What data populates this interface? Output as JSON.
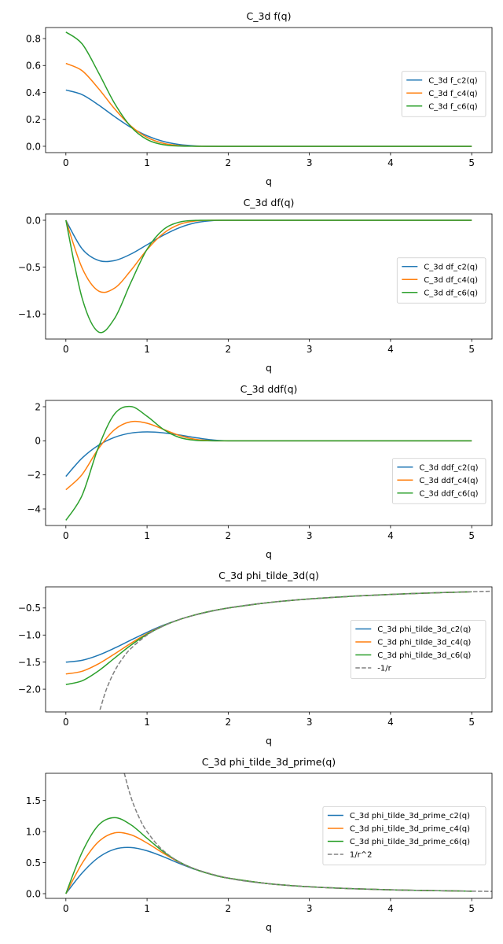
{
  "chart_data": [
    {
      "type": "line",
      "title": "C_3d f(q)",
      "xlabel": "q",
      "xlim": [
        -0.25,
        5.25
      ],
      "ylim": [
        -0.047,
        0.882
      ],
      "x_ticks": [
        0,
        1,
        2,
        3,
        4,
        5
      ],
      "x_tick_labels": [
        "0",
        "1",
        "2",
        "3",
        "4",
        "5"
      ],
      "y_ticks": [
        0.0,
        0.2,
        0.4,
        0.6,
        0.8
      ],
      "y_tick_labels": [
        "0.0",
        "0.2",
        "0.4",
        "0.6",
        "0.8"
      ],
      "grid": false,
      "legend_placement": "center-right",
      "series": [
        {
          "name": "C_3d f_c2(q)",
          "color": "#1f77b4",
          "dashed": false,
          "x": [
            0,
            0.2,
            0.4,
            0.6,
            0.8,
            1.0,
            1.2,
            1.4,
            1.6,
            1.8,
            2.0,
            2.5,
            3,
            3.5,
            4,
            4.5,
            5
          ],
          "y": [
            0.4178,
            0.3837,
            0.308,
            0.2207,
            0.1408,
            0.0783,
            0.0364,
            0.0129,
            0.0028,
            0.0002,
            0,
            0,
            0,
            0,
            0,
            0,
            0
          ]
        },
        {
          "name": "C_3d f_c4(q)",
          "color": "#ff7f0e",
          "dashed": false,
          "x": [
            0,
            0.2,
            0.4,
            0.6,
            0.8,
            1.0,
            1.2,
            1.4,
            1.6,
            1.8,
            2.0,
            2.5,
            3,
            3.5,
            4,
            4.5,
            5
          ],
          "y": [
            0.6155,
            0.5615,
            0.4303,
            0.2788,
            0.1512,
            0.0665,
            0.0222,
            0.0049,
            0.0005,
            0,
            0,
            0,
            0,
            0,
            0,
            0,
            0
          ]
        },
        {
          "name": "C_3d f_c6(q)",
          "color": "#2ca02c",
          "dashed": false,
          "x": [
            0,
            0.2,
            0.4,
            0.6,
            0.8,
            1.0,
            1.2,
            1.4,
            1.6,
            1.8,
            2.0,
            2.5,
            3,
            3.5,
            4,
            4.5,
            5
          ],
          "y": [
            0.8486,
            0.7606,
            0.549,
            0.3187,
            0.1461,
            0.0506,
            0.0121,
            0.0017,
            0.0001,
            0,
            0,
            0,
            0,
            0,
            0,
            0,
            0
          ]
        }
      ]
    },
    {
      "type": "line",
      "title": "C_3d df(q)",
      "xlabel": "q",
      "xlim": [
        -0.25,
        5.25
      ],
      "ylim": [
        -1.267,
        0.067
      ],
      "x_ticks": [
        0,
        1,
        2,
        3,
        4,
        5
      ],
      "x_tick_labels": [
        "0",
        "1",
        "2",
        "3",
        "4",
        "5"
      ],
      "y_ticks": [
        0.0,
        -0.5,
        -1.0
      ],
      "y_tick_labels": [
        "0.0",
        "−0.5",
        "−1.0"
      ],
      "grid": false,
      "legend_placement": "center-right",
      "series": [
        {
          "name": "C_3d df_c2(q)",
          "color": "#1f77b4",
          "dashed": false,
          "x": [
            0,
            0.2,
            0.4,
            0.6,
            0.8,
            1.0,
            1.2,
            1.4,
            1.6,
            1.8,
            2.0,
            2.5,
            3,
            3.5,
            4,
            4.5,
            5
          ],
          "y": [
            0,
            -0.3046,
            -0.4278,
            -0.4299,
            -0.361,
            -0.2611,
            -0.1604,
            -0.079,
            -0.0267,
            -0.0038,
            0,
            0,
            0,
            0,
            0,
            0,
            0
          ]
        },
        {
          "name": "C_3d df_c4(q)",
          "color": "#ff7f0e",
          "dashed": false,
          "x": [
            0,
            0.2,
            0.4,
            0.6,
            0.8,
            1.0,
            1.2,
            1.4,
            1.6,
            1.8,
            2.0,
            2.5,
            3,
            3.5,
            4,
            4.5,
            5
          ],
          "y": [
            0,
            -0.5088,
            -0.7529,
            -0.7241,
            -0.536,
            -0.3141,
            -0.1412,
            -0.044,
            -0.0074,
            -0.0003,
            0,
            0,
            0,
            0,
            0,
            0,
            0
          ]
        },
        {
          "name": "C_3d df_c6(q)",
          "color": "#2ca02c",
          "dashed": false,
          "x": [
            0,
            0.2,
            0.4,
            0.6,
            0.8,
            1.0,
            1.2,
            1.4,
            1.6,
            1.8,
            2.0,
            2.5,
            3,
            3.5,
            4,
            4.5,
            5
          ],
          "y": [
            0,
            -0.8305,
            -1.1903,
            -1.0471,
            -0.6648,
            -0.3099,
            -0.1006,
            -0.0196,
            -0.0016,
            0,
            0,
            0,
            0,
            0,
            0,
            0,
            0
          ]
        }
      ]
    },
    {
      "type": "line",
      "title": "C_3d ddf(q)",
      "xlabel": "q",
      "xlim": [
        -0.25,
        5.25
      ],
      "ylim": [
        -4.97,
        2.37
      ],
      "x_ticks": [
        0,
        1,
        2,
        3,
        4,
        5
      ],
      "x_tick_labels": [
        "0",
        "1",
        "2",
        "3",
        "4",
        "5"
      ],
      "y_ticks": [
        2,
        0,
        -2,
        -4
      ],
      "y_tick_labels": [
        "2",
        "0",
        "−2",
        "−4"
      ],
      "grid": false,
      "legend_placement": "center-right",
      "series": [
        {
          "name": "C_3d ddf_c2(q)",
          "color": "#1f77b4",
          "dashed": false,
          "x": [
            0,
            0.2,
            0.4,
            0.6,
            0.8,
            1.0,
            1.2,
            1.4,
            1.6,
            1.8,
            2.0,
            2.5,
            3,
            3.5,
            4,
            4.5,
            5
          ],
          "y": [
            -2.0889,
            -1.0152,
            -0.2674,
            0.2047,
            0.4512,
            0.5222,
            0.4679,
            0.3384,
            0.1838,
            0.0543,
            0,
            0,
            0,
            0,
            0,
            0,
            0
          ]
        },
        {
          "name": "C_3d ddf_c4(q)",
          "color": "#ff7f0e",
          "dashed": false,
          "x": [
            0,
            0.2,
            0.4,
            0.6,
            0.8,
            1.0,
            1.2,
            1.4,
            1.6,
            1.8,
            2.0,
            2.5,
            3,
            3.5,
            4,
            4.5,
            5
          ],
          "y": [
            -2.8722,
            -1.9787,
            -0.4706,
            0.6551,
            1.1167,
            1.0322,
            0.6765,
            0.3106,
            0.0836,
            0.0068,
            0,
            0,
            0,
            0,
            0,
            0,
            0
          ]
        },
        {
          "name": "C_3d ddf_c6(q)",
          "color": "#2ca02c",
          "dashed": false,
          "x": [
            0,
            0.2,
            0.4,
            0.6,
            0.8,
            1.0,
            1.2,
            1.4,
            1.6,
            1.8,
            2.0,
            2.5,
            3,
            3.5,
            4,
            4.5,
            5
          ],
          "y": [
            -4.6675,
            -3.1999,
            -0.3915,
            1.576,
            2.0122,
            1.4404,
            0.676,
            0.1941,
            0.0256,
            0.0006,
            0,
            0,
            0,
            0,
            0,
            0,
            0
          ]
        }
      ]
    },
    {
      "type": "line",
      "title": "C_3d phi_tilde_3d(q)",
      "xlabel": "q",
      "xlim": [
        -0.25,
        5.25
      ],
      "ylim": [
        -2.42,
        -0.11
      ],
      "x_ticks": [
        0,
        1,
        2,
        3,
        4,
        5
      ],
      "x_tick_labels": [
        "0",
        "1",
        "2",
        "3",
        "4",
        "5"
      ],
      "y_ticks": [
        -0.5,
        -1.0,
        -1.5,
        -2.0
      ],
      "y_tick_labels": [
        "−0.5",
        "−1.0",
        "−1.5",
        "−2.0"
      ],
      "grid": false,
      "legend_placement": "center-right",
      "series": [
        {
          "name": "C_3d phi_tilde_3d_c2(q)",
          "color": "#1f77b4",
          "dashed": false,
          "x": [
            0,
            0.2,
            0.4,
            0.6,
            0.8,
            1.0,
            1.2,
            1.4,
            1.6,
            1.8,
            2.0,
            2.5,
            3,
            3.5,
            4,
            4.5,
            5
          ],
          "y": [
            -1.5,
            -1.4659,
            -1.3728,
            -1.2412,
            -1.0937,
            -0.9492,
            -0.8201,
            -0.7119,
            -0.6248,
            -0.5555,
            -0.5,
            -0.4,
            -0.3333,
            -0.2857,
            -0.25,
            -0.2222,
            -0.2
          ]
        },
        {
          "name": "C_3d phi_tilde_3d_c4(q)",
          "color": "#ff7f0e",
          "dashed": false,
          "x": [
            0,
            0.2,
            0.4,
            0.6,
            0.8,
            1.0,
            1.2,
            1.4,
            1.6,
            1.8,
            2.0,
            2.5,
            3,
            3.5,
            4,
            4.5,
            5
          ],
          "y": [
            -1.7188,
            -1.6686,
            -1.5332,
            -1.3486,
            -1.1533,
            -0.9757,
            -0.8288,
            -0.7139,
            -0.6251,
            -0.5556,
            -0.5,
            -0.4,
            -0.3333,
            -0.2857,
            -0.25,
            -0.2222,
            -0.2
          ]
        },
        {
          "name": "C_3d phi_tilde_3d_c6(q)",
          "color": "#2ca02c",
          "dashed": false,
          "x": [
            0,
            0.2,
            0.4,
            0.6,
            0.8,
            1.0,
            1.2,
            1.4,
            1.6,
            1.8,
            2.0,
            2.5,
            3,
            3.5,
            4,
            4.5,
            5
          ],
          "y": [
            -1.9141,
            -1.8453,
            -1.6635,
            -1.4258,
            -1.1893,
            -0.9882,
            -0.8318,
            -0.7139,
            -0.625,
            -0.5556,
            -0.5,
            -0.4,
            -0.3333,
            -0.2857,
            -0.25,
            -0.2222,
            -0.2
          ]
        },
        {
          "name": "-1/r",
          "color": "#808080",
          "dashed": true,
          "x": [
            0.42,
            0.5,
            0.6,
            0.7,
            0.8,
            1.0,
            1.2,
            1.5,
            2.0,
            2.5,
            3,
            3.5,
            4,
            4.5,
            5,
            5.25
          ],
          "y": [
            -2.381,
            -2.0,
            -1.6667,
            -1.4286,
            -1.25,
            -1.0,
            -0.8333,
            -0.6667,
            -0.5,
            -0.4,
            -0.3333,
            -0.2857,
            -0.25,
            -0.2222,
            -0.2,
            -0.1905
          ]
        }
      ]
    },
    {
      "type": "line",
      "title": "C_3d phi_tilde_3d_prime(q)",
      "xlabel": "q",
      "xlim": [
        -0.25,
        5.25
      ],
      "ylim": [
        -0.076,
        1.94
      ],
      "x_ticks": [
        0,
        1,
        2,
        3,
        4,
        5
      ],
      "x_tick_labels": [
        "0",
        "1",
        "2",
        "3",
        "4",
        "5"
      ],
      "y_ticks": [
        0.0,
        0.5,
        1.0,
        1.5
      ],
      "y_tick_labels": [
        "0.0",
        "0.5",
        "1.0",
        "1.5"
      ],
      "grid": false,
      "legend_placement": "center-right",
      "series": [
        {
          "name": "C_3d phi_tilde_3d_prime_c2(q)",
          "color": "#1f77b4",
          "dashed": false,
          "x": [
            0,
            0.2,
            0.4,
            0.6,
            0.8,
            1.0,
            1.2,
            1.4,
            1.6,
            1.8,
            2.0,
            2.5,
            3,
            3.5,
            4,
            4.5,
            5
          ],
          "y": [
            0,
            0.3323,
            0.5811,
            0.7157,
            0.7431,
            0.6914,
            0.5953,
            0.4866,
            0.3875,
            0.3085,
            0.25,
            0.16,
            0.1111,
            0.0816,
            0.0625,
            0.0494,
            0.04
          ]
        },
        {
          "name": "C_3d phi_tilde_3d_prime_c4(q)",
          "color": "#ff7f0e",
          "dashed": false,
          "x": [
            0,
            0.2,
            0.4,
            0.6,
            0.8,
            1.0,
            1.2,
            1.4,
            1.6,
            1.8,
            2.0,
            2.5,
            3,
            3.5,
            4,
            4.5,
            5
          ],
          "y": [
            0,
            0.488,
            0.8341,
            0.9791,
            0.9494,
            0.8162,
            0.6519,
            0.5037,
            0.3902,
            0.3087,
            0.25,
            0.16,
            0.1111,
            0.0816,
            0.0625,
            0.0494,
            0.04
          ]
        },
        {
          "name": "C_3d phi_tilde_3d_prime_c6(q)",
          "color": "#2ca02c",
          "dashed": false,
          "x": [
            0,
            0.2,
            0.4,
            0.6,
            0.8,
            1.0,
            1.2,
            1.4,
            1.6,
            1.8,
            2.0,
            2.5,
            3,
            3.5,
            4,
            4.5,
            5
          ],
          "y": [
            0,
            0.6659,
            1.1016,
            1.2256,
            1.1113,
            0.8929,
            0.6763,
            0.5093,
            0.3906,
            0.3086,
            0.25,
            0.16,
            0.1111,
            0.0816,
            0.0625,
            0.0494,
            0.04
          ]
        },
        {
          "name": "1/r^2",
          "color": "#808080",
          "dashed": true,
          "x": [
            0.7,
            0.8,
            0.9,
            1.0,
            1.2,
            1.5,
            2.0,
            2.5,
            3,
            3.5,
            4,
            4.5,
            5,
            5.25
          ],
          "y": [
            2.0408,
            1.5625,
            1.2346,
            1.0,
            0.6944,
            0.4444,
            0.25,
            0.16,
            0.1111,
            0.0816,
            0.0625,
            0.0494,
            0.04,
            0.0363
          ]
        }
      ]
    }
  ]
}
